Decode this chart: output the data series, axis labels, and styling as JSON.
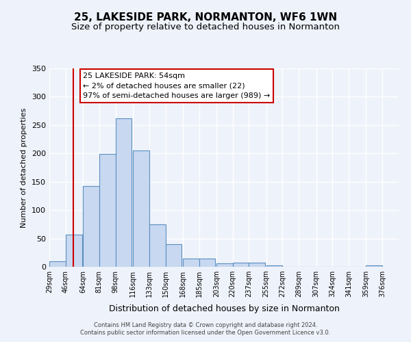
{
  "title": "25, LAKESIDE PARK, NORMANTON, WF6 1WN",
  "subtitle": "Size of property relative to detached houses in Normanton",
  "xlabel": "Distribution of detached houses by size in Normanton",
  "ylabel": "Number of detached properties",
  "bar_left_edges": [
    29,
    46,
    64,
    81,
    98,
    116,
    133,
    150,
    168,
    185,
    203,
    220,
    237,
    255,
    272,
    289,
    307,
    324,
    341,
    359
  ],
  "bar_heights": [
    10,
    57,
    143,
    199,
    262,
    205,
    75,
    40,
    14,
    14,
    6,
    7,
    7,
    2,
    0,
    0,
    0,
    0,
    0,
    2
  ],
  "bin_width": 17,
  "bar_color": "#c8d8f0",
  "bar_edgecolor": "#5a8fc0",
  "vline_x": 54,
  "vline_color": "#cc0000",
  "ylim": [
    0,
    350
  ],
  "xlim_left": 29,
  "xlim_right": 393,
  "xtick_labels": [
    "29sqm",
    "46sqm",
    "64sqm",
    "81sqm",
    "98sqm",
    "116sqm",
    "133sqm",
    "150sqm",
    "168sqm",
    "185sqm",
    "203sqm",
    "220sqm",
    "237sqm",
    "255sqm",
    "272sqm",
    "289sqm",
    "307sqm",
    "324sqm",
    "341sqm",
    "359sqm",
    "376sqm"
  ],
  "xtick_positions": [
    29,
    46,
    64,
    81,
    98,
    116,
    133,
    150,
    168,
    185,
    203,
    220,
    237,
    255,
    272,
    289,
    307,
    324,
    341,
    359,
    376
  ],
  "annotation_title": "25 LAKESIDE PARK: 54sqm",
  "annotation_line1": "← 2% of detached houses are smaller (22)",
  "annotation_line2": "97% of semi-detached houses are larger (989) →",
  "annotation_box_color": "#ffffff",
  "annotation_box_edgecolor": "#cc0000",
  "footer1": "Contains HM Land Registry data © Crown copyright and database right 2024.",
  "footer2": "Contains public sector information licensed under the Open Government Licence v3.0.",
  "background_color": "#eef2fa",
  "grid_color": "#ffffff",
  "title_fontsize": 11,
  "subtitle_fontsize": 9.5,
  "ylabel_fontsize": 8,
  "xlabel_fontsize": 9
}
